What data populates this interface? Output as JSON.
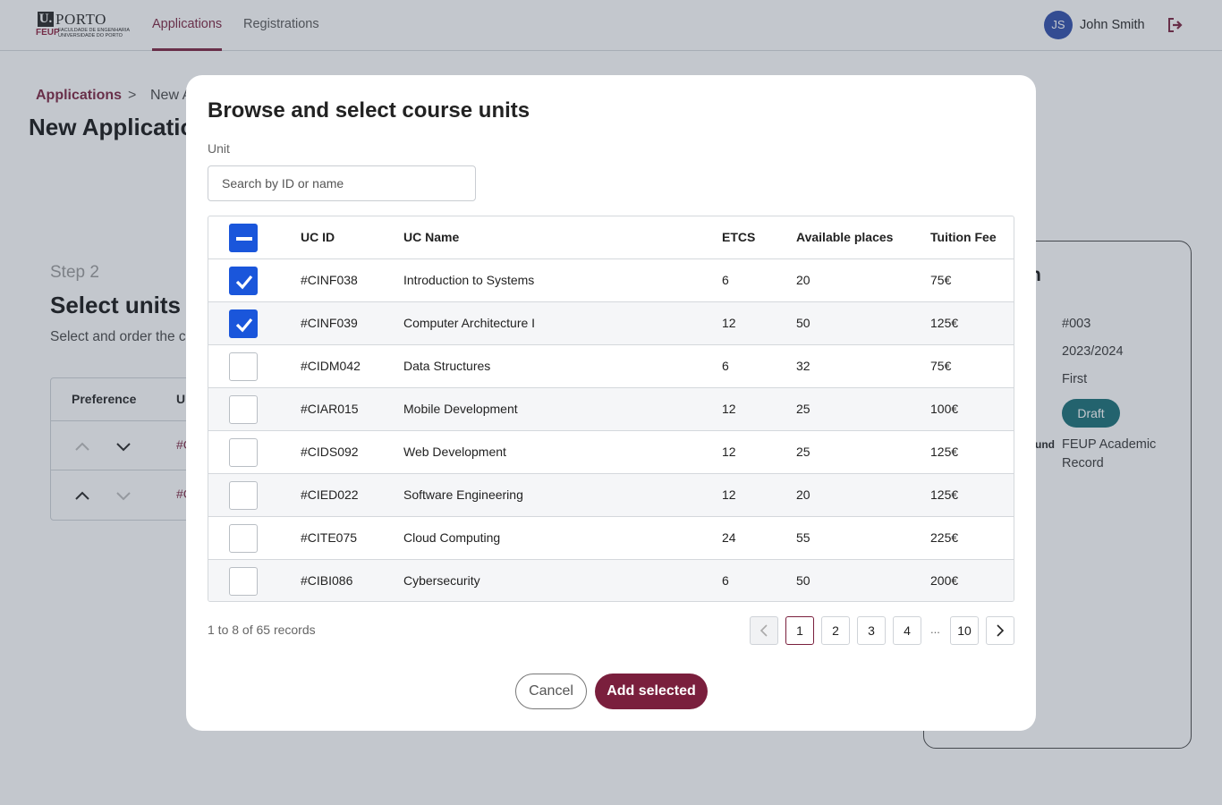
{
  "header": {
    "logo": {
      "u": "U.",
      "porto": "PORTO",
      "feup": "FEUP",
      "faculty": "FACULDADE DE ENGENHARIA UNIVERSIDADE DO PORTO"
    },
    "nav": [
      {
        "label": "Applications",
        "active": true
      },
      {
        "label": "Registrations",
        "active": false
      }
    ],
    "user": {
      "initials": "JS",
      "name": "John Smith"
    },
    "logout_icon": "logout-icon"
  },
  "breadcrumb": {
    "root": "Applications",
    "separator": ">",
    "current": "New A"
  },
  "page_title": "New Applicatio",
  "step": {
    "label": "Step 2",
    "title": "Select units",
    "subtitle": "Select and order the c",
    "table": {
      "col_preference": "Preference",
      "col_id": "U",
      "rows": [
        {
          "id": "#C"
        },
        {
          "id": "#C"
        }
      ]
    }
  },
  "info": {
    "title": "n",
    "values": [
      "#003",
      "2023/2024",
      "First"
    ],
    "status": "Draft",
    "label_partial": "und",
    "record": [
      "FEUP Academic",
      "Record"
    ]
  },
  "modal": {
    "title": "Browse and select course units",
    "field_label": "Unit",
    "search_placeholder": "Search by ID or name",
    "columns": {
      "id": "UC ID",
      "name": "UC Name",
      "etcs": "ETCS",
      "places": "Available places",
      "fee": "Tuition Fee"
    },
    "rows": [
      {
        "id": "#CINF038",
        "name": "Introduction to Systems",
        "etcs": "6",
        "places": "20",
        "fee": "75€",
        "checked": true
      },
      {
        "id": "#CINF039",
        "name": "Computer Architecture I",
        "etcs": "12",
        "places": "50",
        "fee": "125€",
        "checked": true
      },
      {
        "id": "#CIDM042",
        "name": "Data Structures",
        "etcs": "6",
        "places": "32",
        "fee": "75€",
        "checked": false
      },
      {
        "id": "#CIAR015",
        "name": "Mobile Development",
        "etcs": "12",
        "places": "25",
        "fee": "100€",
        "checked": false
      },
      {
        "id": "#CIDS092",
        "name": "Web Development",
        "etcs": "12",
        "places": "25",
        "fee": "125€",
        "checked": false
      },
      {
        "id": "#CIED022",
        "name": "Software Engineering",
        "etcs": "12",
        "places": "20",
        "fee": "125€",
        "checked": false
      },
      {
        "id": "#CITE075",
        "name": "Cloud Computing",
        "etcs": "24",
        "places": "55",
        "fee": "225€",
        "checked": false
      },
      {
        "id": "#CIBI086",
        "name": "Cybersecurity",
        "etcs": "6",
        "places": "50",
        "fee": "200€",
        "checked": false
      }
    ],
    "records_text": "1 to 8 of 65 records",
    "pagination": {
      "pages": [
        "1",
        "2",
        "3",
        "4"
      ],
      "ellipsis": "...",
      "last": "10",
      "current": "1"
    },
    "cancel_label": "Cancel",
    "add_label": "Add selected"
  },
  "colors": {
    "brand": "#7a1f3d",
    "checkbox": "#1a56db",
    "draft": "#146c74",
    "avatar": "#2c4aa8"
  }
}
